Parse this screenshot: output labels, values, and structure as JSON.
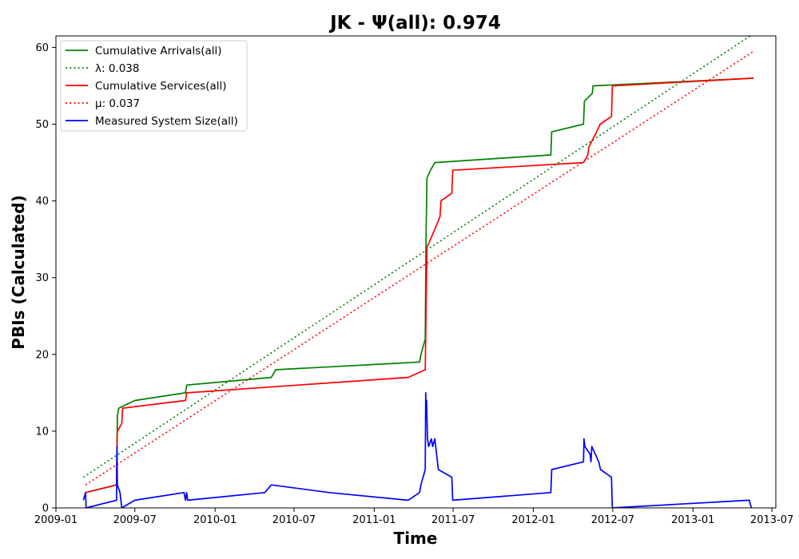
{
  "chart_data": {
    "type": "line",
    "title": "JK -  Ψ(all): 0.974",
    "xlabel": "Time",
    "ylabel": "PBIs (Calculated)",
    "xlim": [
      "2009-01-01",
      "2013-07-10"
    ],
    "ylim": [
      0,
      61.5
    ],
    "xticks": [
      "2009-01",
      "2009-07",
      "2010-01",
      "2010-07",
      "2011-01",
      "2011-07",
      "2012-01",
      "2012-07",
      "2013-01",
      "2013-07"
    ],
    "yticks": [
      0,
      10,
      20,
      30,
      40,
      50,
      60
    ],
    "grid": false,
    "legend_position": "top-left",
    "series": [
      {
        "name": "Cumulative Arrivals(all)",
        "style": "solid",
        "color": "#008000",
        "points": [
          [
            "2009-03-10",
            2
          ],
          [
            "2009-05-20",
            3
          ],
          [
            "2009-05-21",
            8
          ],
          [
            "2009-05-22",
            12
          ],
          [
            "2009-05-25",
            13
          ],
          [
            "2009-07-01",
            14
          ],
          [
            "2009-10-25",
            15
          ],
          [
            "2009-10-28",
            16
          ],
          [
            "2010-05-10",
            17
          ],
          [
            "2010-05-20",
            18
          ],
          [
            "2011-04-15",
            19
          ],
          [
            "2011-04-18",
            20
          ],
          [
            "2011-04-28",
            22
          ],
          [
            "2011-04-30",
            36
          ],
          [
            "2011-05-02",
            43
          ],
          [
            "2011-05-10",
            44
          ],
          [
            "2011-05-20",
            45
          ],
          [
            "2012-02-10",
            46
          ],
          [
            "2012-02-12",
            49
          ],
          [
            "2012-04-25",
            50
          ],
          [
            "2012-04-27",
            53
          ],
          [
            "2012-05-15",
            54
          ],
          [
            "2012-05-17",
            55
          ],
          [
            "2013-05-20",
            56
          ]
        ]
      },
      {
        "name": "λ: 0.038",
        "style": "dotted",
        "color": "#008000",
        "points": [
          [
            "2009-03-05",
            4
          ],
          [
            "2013-05-20",
            61.8
          ]
        ]
      },
      {
        "name": "Cumulative Services(all)",
        "style": "solid",
        "color": "#ff0000",
        "points": [
          [
            "2009-03-10",
            2
          ],
          [
            "2009-05-20",
            3
          ],
          [
            "2009-05-21",
            8
          ],
          [
            "2009-05-22",
            10
          ],
          [
            "2009-06-01",
            11
          ],
          [
            "2009-06-03",
            13
          ],
          [
            "2009-10-25",
            14
          ],
          [
            "2009-10-28",
            15
          ],
          [
            "2011-03-20",
            17
          ],
          [
            "2011-04-28",
            18
          ],
          [
            "2011-04-30",
            26
          ],
          [
            "2011-05-02",
            34
          ],
          [
            "2011-05-10",
            35
          ],
          [
            "2011-05-25",
            37
          ],
          [
            "2011-06-01",
            38
          ],
          [
            "2011-06-03",
            40
          ],
          [
            "2011-06-28",
            41
          ],
          [
            "2011-06-30",
            44
          ],
          [
            "2012-04-25",
            45
          ],
          [
            "2012-05-05",
            46
          ],
          [
            "2012-05-07",
            47
          ],
          [
            "2012-05-25",
            49
          ],
          [
            "2012-06-02",
            50
          ],
          [
            "2012-06-28",
            51
          ],
          [
            "2012-06-30",
            55
          ],
          [
            "2013-05-20",
            56
          ]
        ]
      },
      {
        "name": "μ: 0.037",
        "style": "dotted",
        "color": "#ff0000",
        "points": [
          [
            "2009-03-10",
            3
          ],
          [
            "2013-05-20",
            59.5
          ]
        ]
      },
      {
        "name": "Measured System Size(all)",
        "style": "solid",
        "color": "#0000ff",
        "points": [
          [
            "2009-03-05",
            1
          ],
          [
            "2009-03-10",
            2
          ],
          [
            "2009-03-11",
            0
          ],
          [
            "2009-05-20",
            1
          ],
          [
            "2009-05-21",
            8
          ],
          [
            "2009-05-22",
            3
          ],
          [
            "2009-05-28",
            2
          ],
          [
            "2009-06-01",
            0
          ],
          [
            "2009-07-01",
            1
          ],
          [
            "2009-10-22",
            2
          ],
          [
            "2009-10-25",
            1
          ],
          [
            "2009-10-28",
            2
          ],
          [
            "2009-10-30",
            1
          ],
          [
            "2010-04-25",
            2
          ],
          [
            "2010-05-10",
            3
          ],
          [
            "2010-09-20",
            2
          ],
          [
            "2011-03-20",
            1
          ],
          [
            "2011-04-15",
            2
          ],
          [
            "2011-04-18",
            3
          ],
          [
            "2011-04-28",
            5
          ],
          [
            "2011-04-29",
            15
          ],
          [
            "2011-04-30",
            13
          ],
          [
            "2011-05-01",
            14
          ],
          [
            "2011-05-03",
            9
          ],
          [
            "2011-05-06",
            8
          ],
          [
            "2011-05-12",
            9
          ],
          [
            "2011-05-15",
            8
          ],
          [
            "2011-05-20",
            9
          ],
          [
            "2011-05-28",
            5
          ],
          [
            "2011-06-28",
            4
          ],
          [
            "2011-06-30",
            1
          ],
          [
            "2012-02-10",
            2
          ],
          [
            "2012-02-12",
            5
          ],
          [
            "2012-04-25",
            6
          ],
          [
            "2012-04-26",
            9
          ],
          [
            "2012-04-28",
            8
          ],
          [
            "2012-05-10",
            7
          ],
          [
            "2012-05-12",
            6
          ],
          [
            "2012-05-14",
            8
          ],
          [
            "2012-05-30",
            6
          ],
          [
            "2012-06-03",
            5
          ],
          [
            "2012-06-28",
            4
          ],
          [
            "2012-06-30",
            0
          ],
          [
            "2013-05-10",
            1
          ],
          [
            "2013-05-15",
            0
          ]
        ]
      }
    ]
  }
}
